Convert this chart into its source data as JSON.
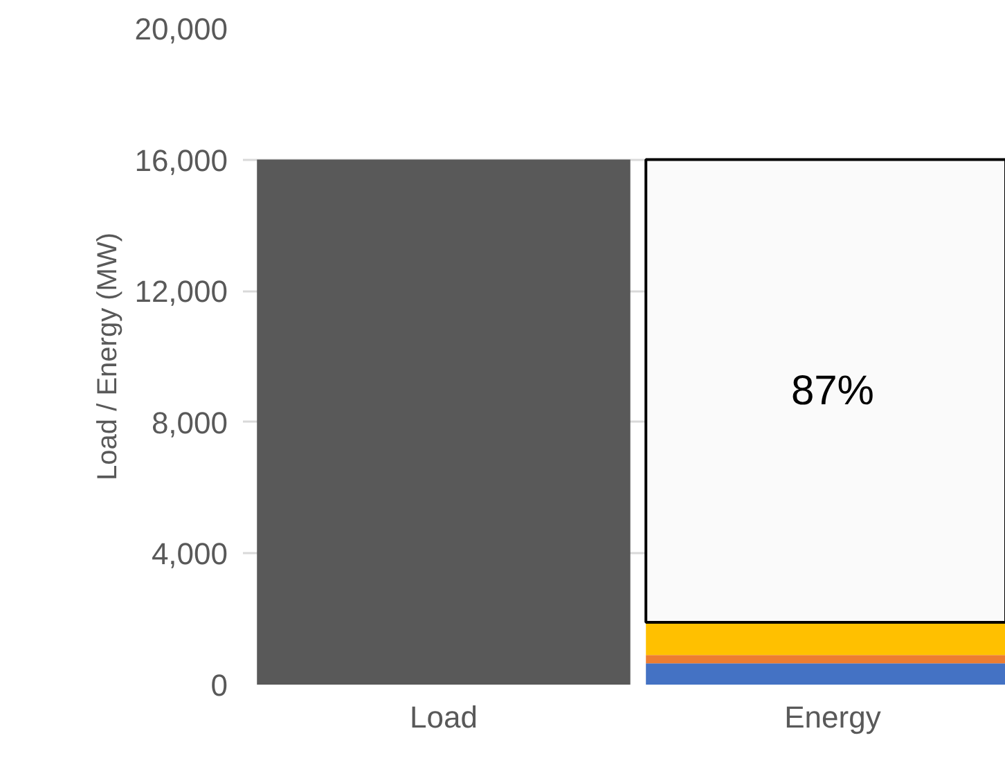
{
  "chart_data": {
    "type": "bar",
    "stacked": true,
    "ylabel": "Load / Energy (MW)",
    "categories": [
      "Load",
      "Energy"
    ],
    "series": [
      {
        "color": "#595959",
        "values": [
          16000,
          null
        ]
      },
      {
        "color": "#4472c4",
        "values": [
          null,
          650
        ]
      },
      {
        "color": "#ed7d31",
        "values": [
          null,
          250
        ]
      },
      {
        "color": "#ffc000",
        "values": [
          null,
          1000
        ]
      },
      {
        "color": "#fafafa",
        "values": [
          null,
          14100
        ]
      }
    ],
    "ylim": [
      0,
      20000
    ],
    "yticks": [
      {
        "value": 0,
        "label": "0"
      },
      {
        "value": 4000,
        "label": "4,000"
      },
      {
        "value": 8000,
        "label": "8,000"
      },
      {
        "value": 12000,
        "label": "12,000"
      },
      {
        "value": 16000,
        "label": "16,000"
      },
      {
        "value": 20000,
        "label": "20,000"
      }
    ],
    "annotations": [
      "87%"
    ],
    "grid": "y"
  }
}
